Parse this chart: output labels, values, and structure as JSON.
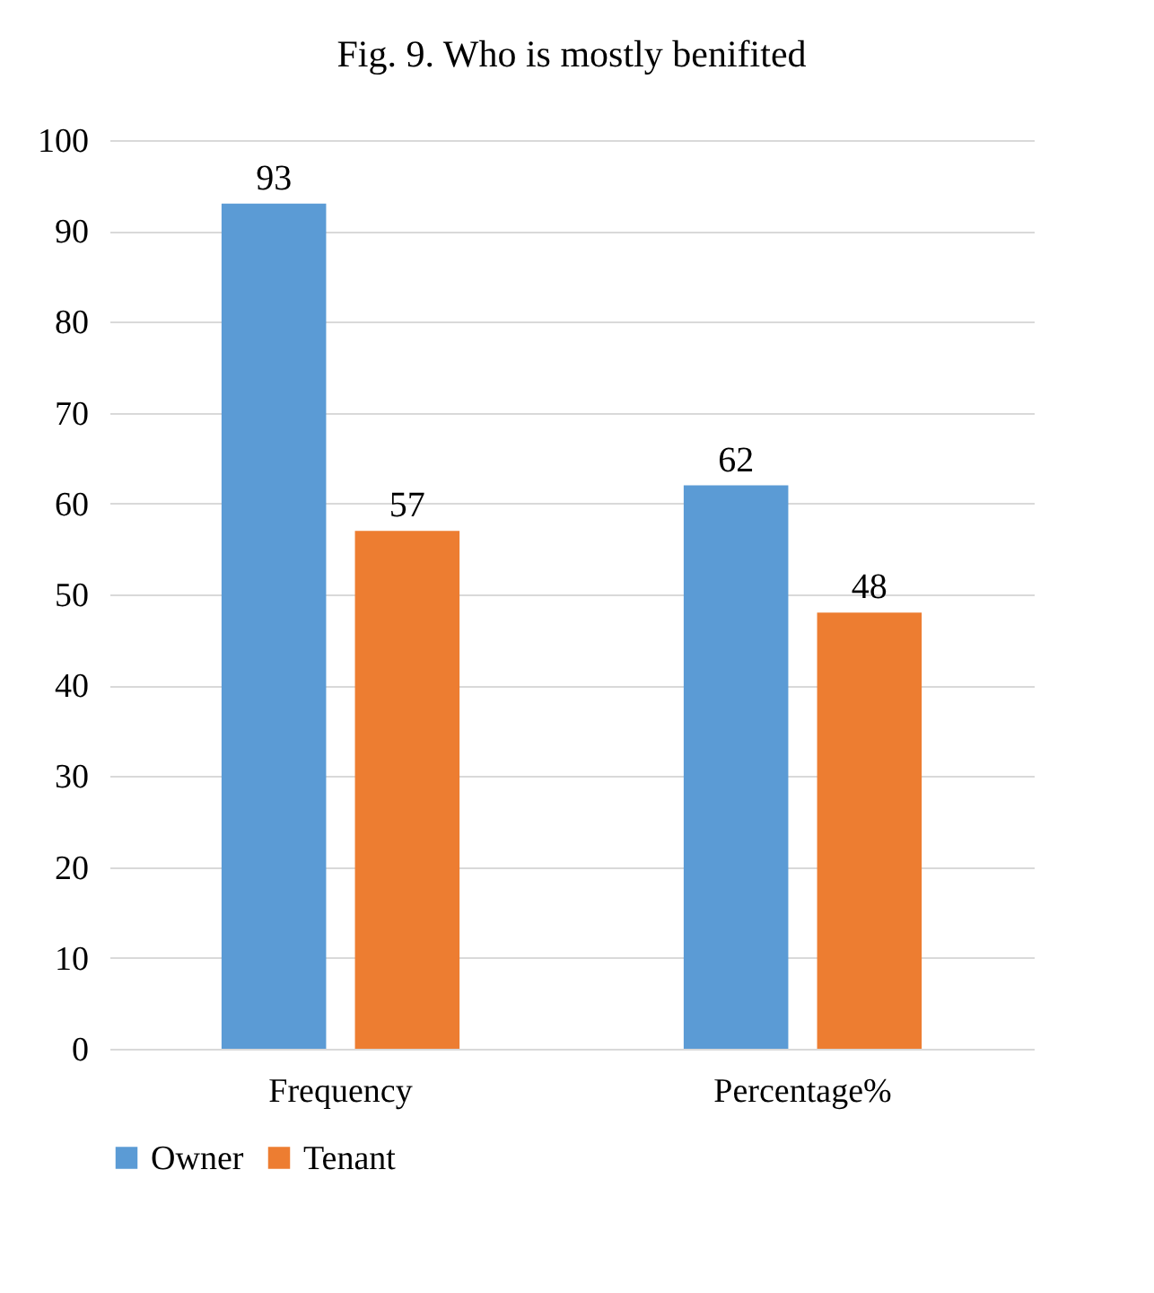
{
  "chart_data": {
    "type": "bar",
    "title": "Fig. 9. Who is mostly benifited",
    "categories": [
      "Frequency",
      "Percentage%"
    ],
    "series": [
      {
        "name": "Owner",
        "color": "#5b9bd5",
        "values": [
          93,
          62
        ]
      },
      {
        "name": "Tenant",
        "color": "#ed7d31",
        "values": [
          57,
          48
        ]
      }
    ],
    "ylim": [
      0,
      100
    ],
    "yticks": [
      0,
      10,
      20,
      30,
      40,
      50,
      60,
      70,
      80,
      90,
      100
    ],
    "grid": "y",
    "legend": "bottom",
    "data_labels": true
  }
}
